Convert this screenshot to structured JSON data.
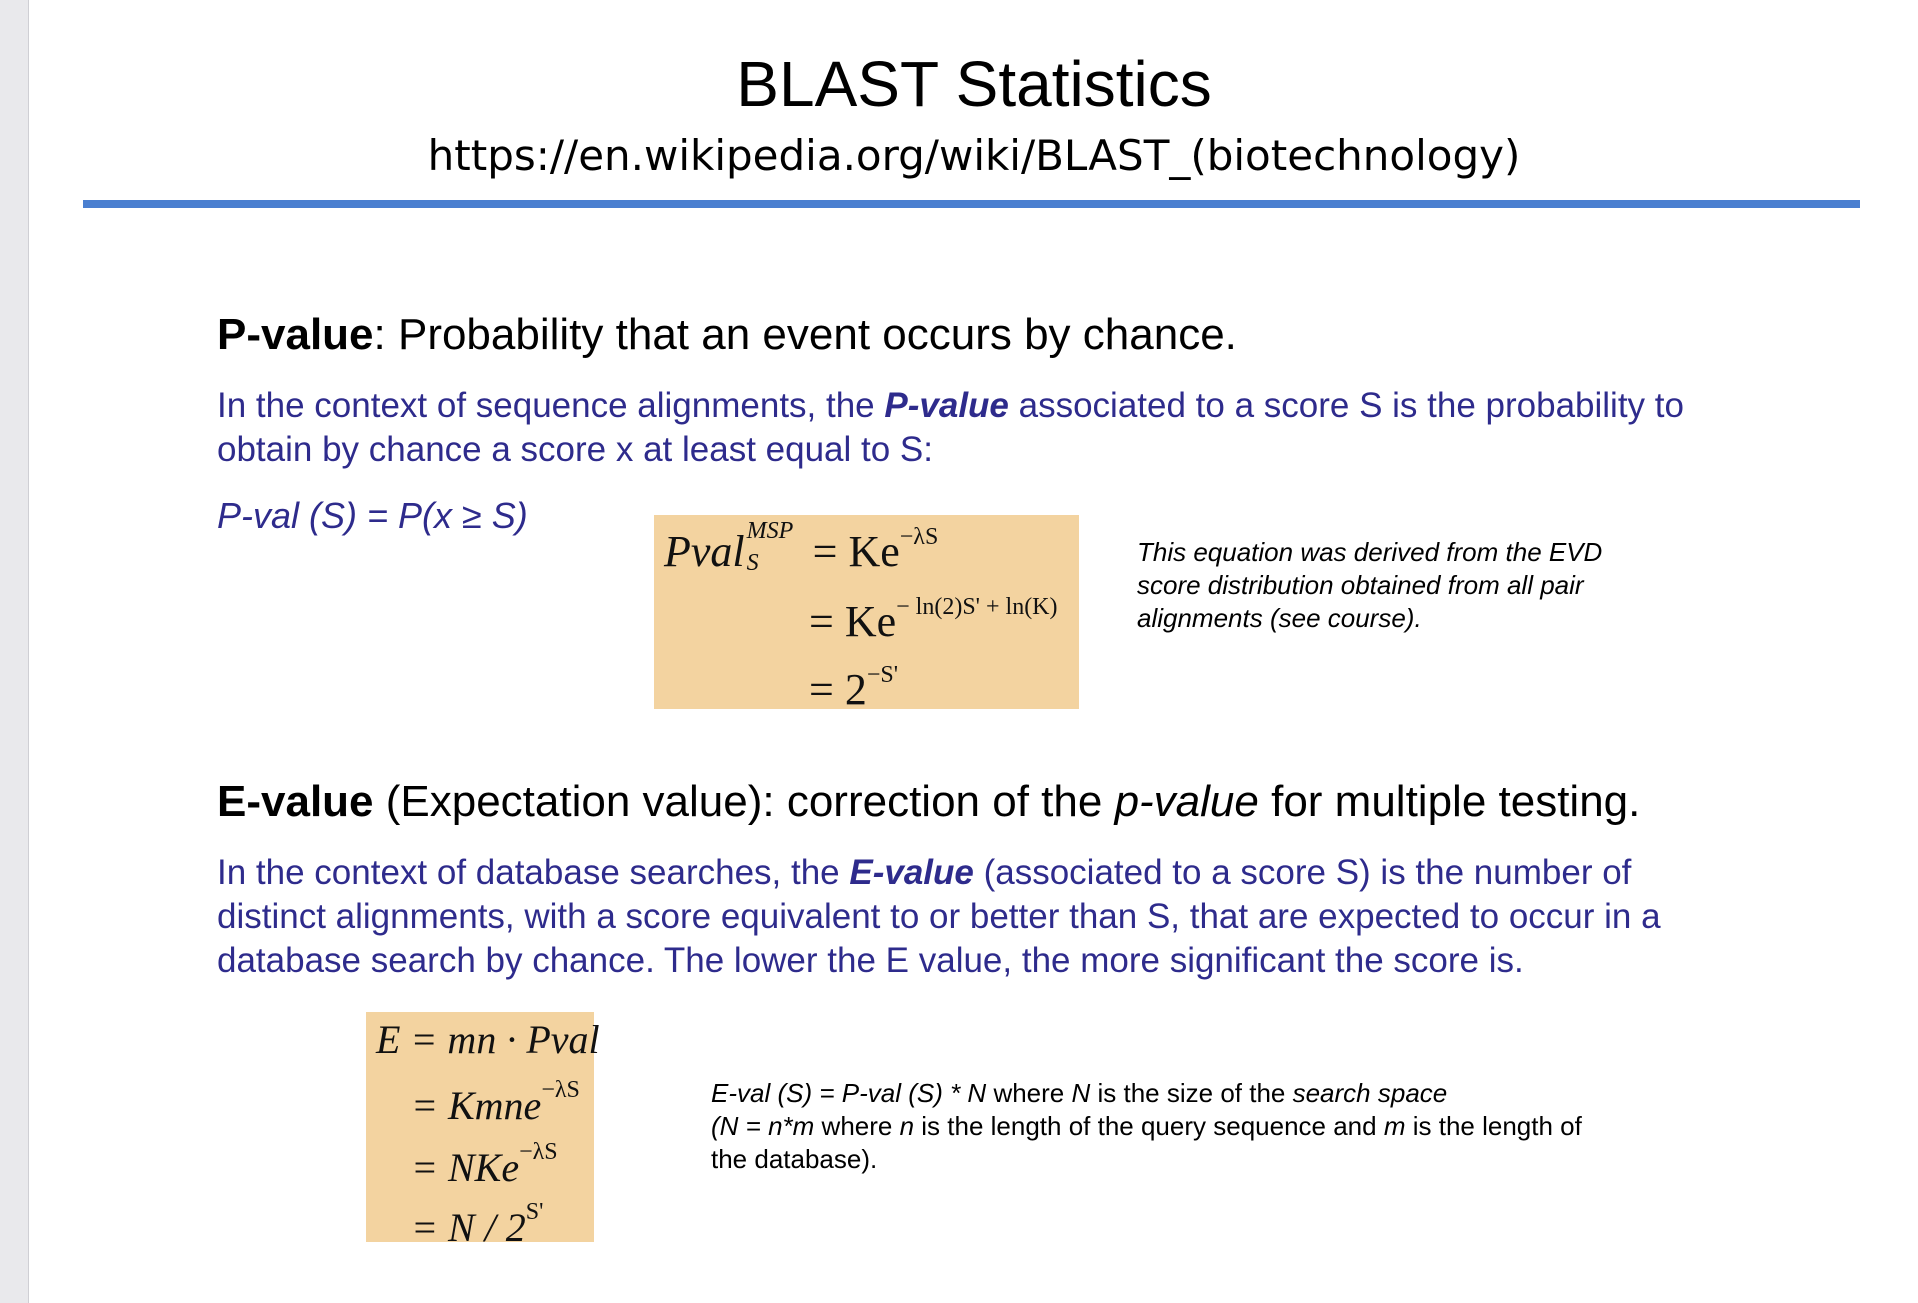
{
  "title": "BLAST Statistics",
  "url": "https://en.wikipedia.org/wiki/BLAST_(biotechnology)",
  "pvalue": {
    "heading_bold": "P-value",
    "heading_rest": ": Probability that an event occurs by chance.",
    "para_1": "In the context of sequence alignments, the ",
    "para_em": "P-value",
    "para_2": " associated to a score S is the probability to obtain by chance a score x at least equal to S:",
    "formula": "P-val (S) = P(x ≥ S)",
    "math": {
      "l1_lhs": "Pval",
      "l1_sup": "MSP",
      "l1_sub": "S",
      "l1_rhs": "= Ke",
      "l1_exp": "−λS",
      "l2_rhs": "= Ke",
      "l2_exp": "− ln(2)S' + ln(K)",
      "l3_rhs": "= 2",
      "l3_exp": "−S'"
    },
    "note": "This equation was derived from the EVD score distribution obtained from all pair alignments (see course)."
  },
  "evalue": {
    "heading_bold": "E-value",
    "heading_mid": " (Expectation value): correction of the ",
    "heading_em": "p-value",
    "heading_end": " for multiple testing.",
    "para_1": "In the context of database searches, the ",
    "para_em": "E-value",
    "para_2": " (associated to a score S) is the number of distinct alignments, with a score equivalent to or better than S, that are expected to occur in a database search by chance. The lower the E value, the more significant the score is.",
    "math": {
      "l1": "E = mn · Pval",
      "l2": "= Kmne",
      "l2_exp": "−λS",
      "l3": "= NKe",
      "l3_exp": "−λS",
      "l4": "= N / 2",
      "l4_exp": "S'"
    },
    "note": {
      "a_it": "E-val (S) = P-val (S) * N",
      "b": " where ",
      "c_it": "N",
      "d": " is the size of the ",
      "e_it": "search space",
      "f_it": "(N = n*m",
      "g": " where ",
      "h_it": "n",
      "i": " is the length of the query sequence and ",
      "j_it": "m",
      "k": " is the length of the database)."
    }
  }
}
